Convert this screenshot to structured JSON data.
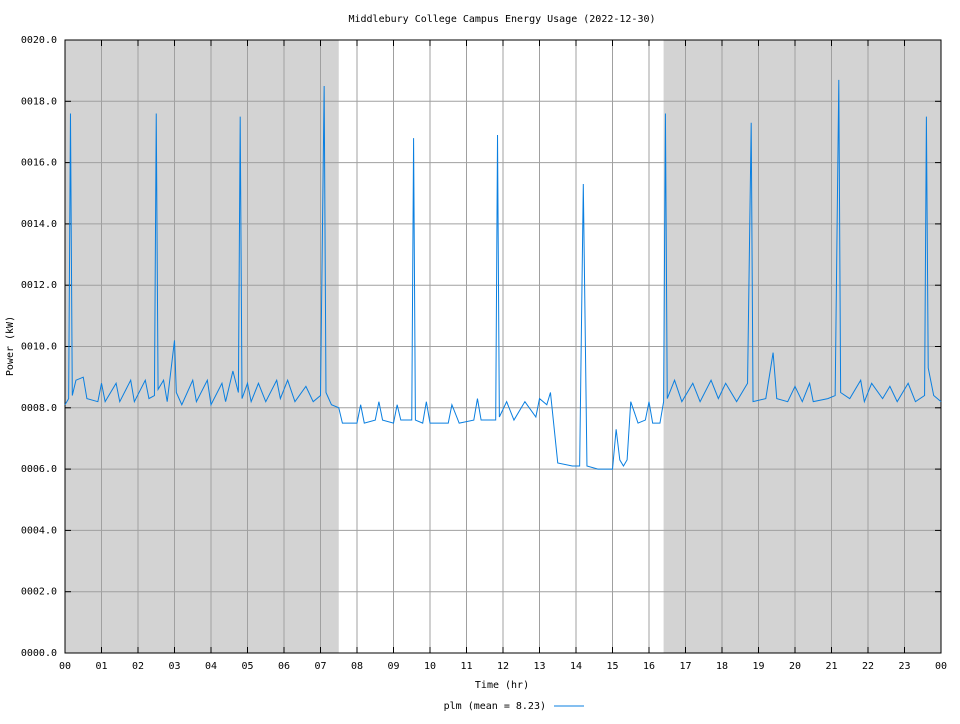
{
  "chart_data": {
    "type": "line",
    "title": "Middlebury College Campus Energy Usage (2022-12-30)",
    "x_label": "Time (hr)",
    "y_label": "Power (kW)",
    "xlim": [
      0,
      24
    ],
    "ylim": [
      0,
      20
    ],
    "xticks": [
      {
        "value": 0,
        "label": "00"
      },
      {
        "value": 1,
        "label": "01"
      },
      {
        "value": 2,
        "label": "02"
      },
      {
        "value": 3,
        "label": "03"
      },
      {
        "value": 4,
        "label": "04"
      },
      {
        "value": 5,
        "label": "05"
      },
      {
        "value": 6,
        "label": "06"
      },
      {
        "value": 7,
        "label": "07"
      },
      {
        "value": 8,
        "label": "08"
      },
      {
        "value": 9,
        "label": "09"
      },
      {
        "value": 10,
        "label": "10"
      },
      {
        "value": 11,
        "label": "11"
      },
      {
        "value": 12,
        "label": "12"
      },
      {
        "value": 13,
        "label": "13"
      },
      {
        "value": 14,
        "label": "14"
      },
      {
        "value": 15,
        "label": "15"
      },
      {
        "value": 16,
        "label": "16"
      },
      {
        "value": 17,
        "label": "17"
      },
      {
        "value": 18,
        "label": "18"
      },
      {
        "value": 19,
        "label": "19"
      },
      {
        "value": 20,
        "label": "20"
      },
      {
        "value": 21,
        "label": "21"
      },
      {
        "value": 22,
        "label": "22"
      },
      {
        "value": 23,
        "label": "23"
      },
      {
        "value": 24,
        "label": "00"
      }
    ],
    "yticks": [
      {
        "value": 0,
        "label": "0000.0"
      },
      {
        "value": 2,
        "label": "0002.0"
      },
      {
        "value": 4,
        "label": "0004.0"
      },
      {
        "value": 6,
        "label": "0006.0"
      },
      {
        "value": 8,
        "label": "0008.0"
      },
      {
        "value": 10,
        "label": "0010.0"
      },
      {
        "value": 12,
        "label": "0012.0"
      },
      {
        "value": 14,
        "label": "0014.0"
      },
      {
        "value": 16,
        "label": "0016.0"
      },
      {
        "value": 18,
        "label": "0018.0"
      },
      {
        "value": 20,
        "label": "0020.0"
      }
    ],
    "grid": true,
    "shaded_regions": [
      [
        0,
        7.5
      ],
      [
        16.4,
        24
      ]
    ],
    "shade_color": "#d3d3d3",
    "x": [
      0.0,
      0.1,
      0.15,
      0.2,
      0.3,
      0.5,
      0.6,
      0.9,
      1.0,
      1.1,
      1.4,
      1.5,
      1.8,
      1.9,
      2.2,
      2.3,
      2.45,
      2.5,
      2.55,
      2.7,
      2.8,
      3.0,
      3.05,
      3.2,
      3.5,
      3.6,
      3.9,
      4.0,
      4.3,
      4.4,
      4.6,
      4.75,
      4.8,
      4.85,
      5.0,
      5.1,
      5.3,
      5.5,
      5.8,
      5.9,
      6.1,
      6.3,
      6.6,
      6.8,
      7.0,
      7.1,
      7.15,
      7.3,
      7.5,
      7.6,
      8.0,
      8.1,
      8.2,
      8.5,
      8.6,
      8.7,
      9.0,
      9.1,
      9.2,
      9.5,
      9.55,
      9.6,
      9.8,
      9.9,
      10.0,
      10.5,
      10.6,
      10.8,
      11.2,
      11.3,
      11.4,
      11.8,
      11.85,
      11.9,
      12.1,
      12.3,
      12.6,
      12.9,
      13.0,
      13.2,
      13.3,
      13.5,
      13.9,
      14.1,
      14.2,
      14.3,
      14.6,
      15.0,
      15.1,
      15.2,
      15.3,
      15.4,
      15.5,
      15.7,
      15.9,
      16.0,
      16.1,
      16.3,
      16.4,
      16.45,
      16.5,
      16.7,
      16.9,
      17.2,
      17.4,
      17.7,
      17.9,
      18.1,
      18.4,
      18.7,
      18.8,
      18.85,
      19.2,
      19.4,
      19.5,
      19.8,
      20.0,
      20.2,
      20.4,
      20.5,
      20.9,
      21.1,
      21.2,
      21.25,
      21.5,
      21.8,
      21.9,
      22.1,
      22.4,
      22.6,
      22.8,
      23.1,
      23.3,
      23.55,
      23.6,
      23.65,
      23.8,
      24.0
    ],
    "series": [
      {
        "name": "plm (mean = 8.23)",
        "color": "#0a7fe0",
        "values": [
          8.1,
          8.3,
          17.6,
          8.4,
          8.9,
          9.0,
          8.3,
          8.2,
          8.8,
          8.2,
          8.8,
          8.2,
          8.9,
          8.2,
          8.9,
          8.3,
          8.4,
          17.6,
          8.6,
          8.9,
          8.2,
          10.2,
          8.5,
          8.1,
          8.9,
          8.2,
          8.9,
          8.1,
          8.8,
          8.2,
          9.2,
          8.5,
          17.5,
          8.3,
          8.8,
          8.2,
          8.8,
          8.2,
          8.9,
          8.3,
          8.9,
          8.2,
          8.7,
          8.2,
          8.4,
          18.5,
          8.5,
          8.1,
          8.0,
          7.5,
          7.5,
          8.1,
          7.5,
          7.6,
          8.2,
          7.6,
          7.5,
          8.1,
          7.6,
          7.6,
          16.8,
          7.6,
          7.5,
          8.2,
          7.5,
          7.5,
          8.1,
          7.5,
          7.6,
          8.3,
          7.6,
          7.6,
          16.9,
          7.7,
          8.2,
          7.6,
          8.2,
          7.7,
          8.3,
          8.1,
          8.5,
          6.2,
          6.1,
          6.1,
          15.3,
          6.1,
          6.0,
          6.0,
          7.3,
          6.3,
          6.1,
          6.3,
          8.2,
          7.5,
          7.6,
          8.2,
          7.5,
          7.5,
          8.2,
          17.6,
          8.3,
          8.9,
          8.2,
          8.8,
          8.2,
          8.9,
          8.3,
          8.8,
          8.2,
          8.8,
          17.3,
          8.2,
          8.3,
          9.8,
          8.3,
          8.2,
          8.7,
          8.2,
          8.8,
          8.2,
          8.3,
          8.4,
          18.7,
          8.5,
          8.3,
          8.9,
          8.2,
          8.8,
          8.3,
          8.7,
          8.2,
          8.8,
          8.2,
          8.4,
          17.5,
          9.3,
          8.4,
          8.2
        ]
      }
    ]
  }
}
